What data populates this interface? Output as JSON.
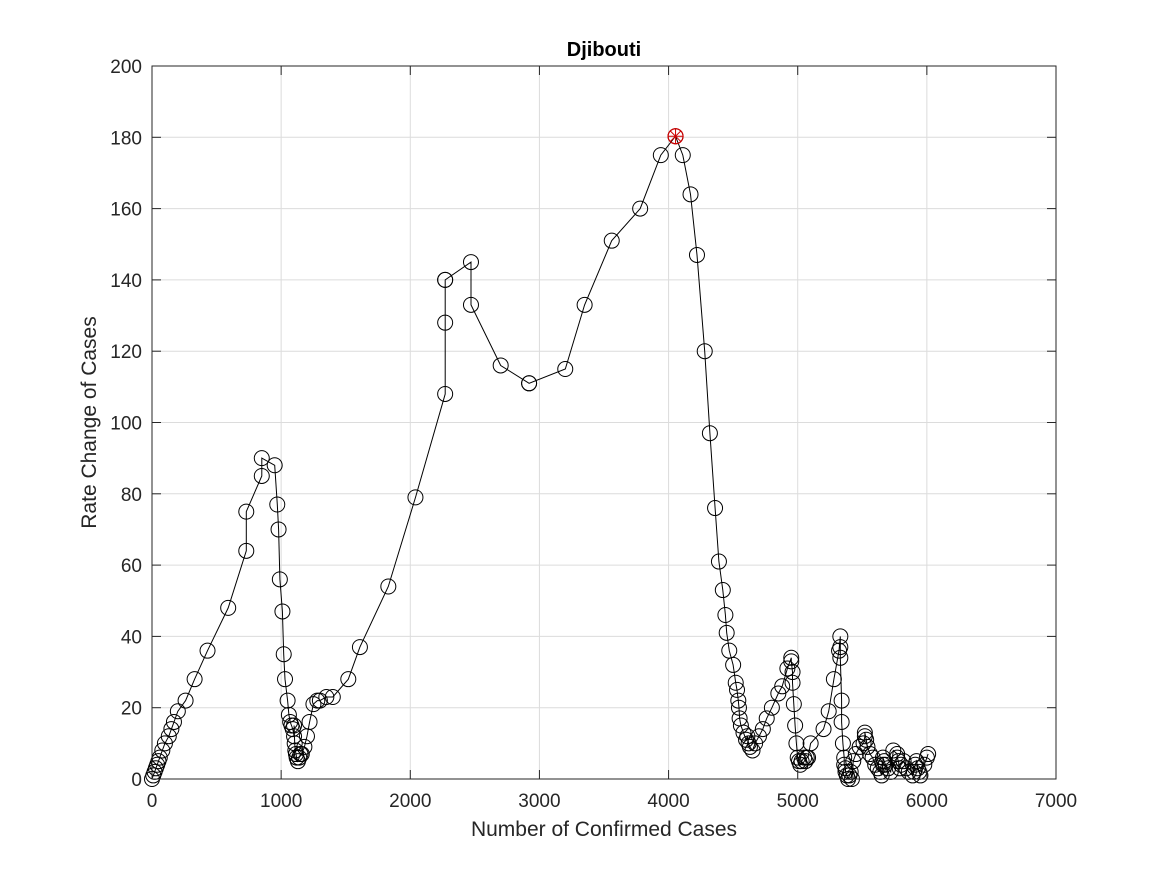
{
  "chart_data": {
    "type": "line",
    "title": "Djibouti",
    "xlabel": "Number of Confirmed Cases",
    "ylabel": "Rate Change of Cases",
    "xlim": [
      0,
      7000
    ],
    "ylim": [
      0,
      200
    ],
    "xticks": [
      0,
      1000,
      2000,
      3000,
      4000,
      5000,
      6000,
      7000
    ],
    "yticks": [
      0,
      20,
      40,
      60,
      80,
      100,
      120,
      140,
      160,
      180,
      200
    ],
    "grid": true,
    "marker": "circle",
    "line_color": "#000000",
    "peak_marker_color": "#cc0000",
    "peak": {
      "x": 4054,
      "y": 180.3
    },
    "series": [
      {
        "x": [
          0,
          10,
          20,
          30,
          40,
          50,
          60,
          80,
          100,
          130,
          150,
          170,
          200,
          260,
          330,
          430,
          590,
          730,
          730,
          850,
          850,
          950,
          970,
          980,
          990,
          1010,
          1020,
          1030,
          1050,
          1060,
          1070,
          1080,
          1090,
          1100,
          1100,
          1105,
          1110,
          1115,
          1120,
          1130,
          1140,
          1150,
          1160,
          1180,
          1200,
          1220,
          1250,
          1280,
          1300,
          1350,
          1400,
          1520,
          1610,
          1830,
          2040,
          2270,
          2270,
          2270,
          2270,
          2470,
          2470,
          2700,
          2920,
          2920,
          3200,
          3350,
          3560,
          3780,
          3940,
          4054,
          4110,
          4170,
          4220,
          4280,
          4320,
          4360,
          4390,
          4420,
          4440,
          4450,
          4470,
          4500,
          4520,
          4530,
          4540,
          4545,
          4550,
          4560,
          4580,
          4600,
          4610,
          4620,
          4630,
          4650,
          4670,
          4700,
          4730,
          4760,
          4800,
          4850,
          4880,
          4920,
          4950,
          4950,
          4960,
          4960,
          4970,
          4980,
          4990,
          5000,
          5010,
          5020,
          5030,
          5050,
          5060,
          5070,
          5080,
          5100,
          5200,
          5240,
          5280,
          5320,
          5330,
          5330,
          5330,
          5340,
          5340,
          5350,
          5360,
          5360,
          5370,
          5370,
          5380,
          5390,
          5400,
          5410,
          5420,
          5430,
          5450,
          5480,
          5510,
          5520,
          5520,
          5530,
          5540,
          5560,
          5580,
          5600,
          5620,
          5640,
          5650,
          5660,
          5660,
          5670,
          5680,
          5700,
          5720,
          5740,
          5770,
          5770,
          5780,
          5790,
          5800,
          5820,
          5840,
          5860,
          5890,
          5900,
          5910,
          5920,
          5930,
          5940,
          5950,
          5980,
          6000,
          6010
        ],
        "y": [
          0,
          1,
          2,
          3,
          4,
          5,
          6,
          8,
          10,
          12,
          14,
          16,
          19,
          22,
          28,
          36,
          48,
          64,
          75,
          85,
          90,
          88,
          77,
          70,
          56,
          47,
          35,
          28,
          22,
          18,
          16,
          15,
          14,
          12,
          15,
          10,
          8,
          7,
          6,
          5,
          6,
          7,
          7,
          9,
          12,
          16,
          21,
          22,
          22,
          23,
          23,
          28,
          37,
          54,
          79,
          108,
          128,
          140,
          140,
          145,
          133,
          116,
          111,
          111,
          115,
          133,
          151,
          160,
          175,
          180.3,
          175,
          164,
          147,
          120,
          97,
          76,
          61,
          53,
          46,
          41,
          36,
          32,
          27,
          25,
          22,
          20,
          17,
          15,
          13,
          11,
          12,
          10,
          9,
          8,
          10,
          12,
          14,
          17,
          20,
          24,
          26,
          31,
          34,
          33,
          30,
          27,
          21,
          15,
          10,
          6,
          5,
          4,
          5,
          6,
          5,
          6,
          6,
          10,
          14,
          19,
          28,
          36,
          40,
          37,
          34,
          22,
          16,
          10,
          6,
          4,
          3,
          2,
          1,
          0,
          1,
          2,
          0,
          5,
          7,
          9,
          10,
          12,
          13,
          11,
          9,
          7,
          6,
          4,
          3,
          2,
          1,
          4,
          6,
          5,
          4,
          3,
          2,
          8,
          7,
          6,
          5,
          3,
          4,
          5,
          3,
          2,
          1,
          2,
          4,
          5,
          3,
          2,
          1,
          4,
          6,
          7
        ]
      }
    ]
  }
}
